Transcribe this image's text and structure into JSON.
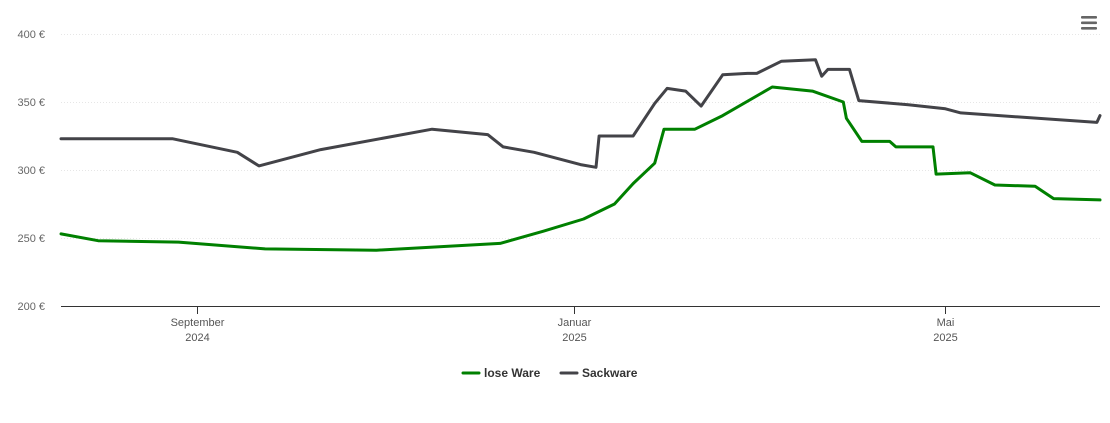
{
  "chart_data": {
    "type": "line",
    "title": "",
    "xlabel": "",
    "ylabel": "",
    "x_range": [
      "2024-07-19",
      "2025-06-20"
    ],
    "ylim": [
      200,
      400
    ],
    "y_ticks": [
      {
        "value": 200,
        "label": "200 €"
      },
      {
        "value": 250,
        "label": "250 €"
      },
      {
        "value": 300,
        "label": "300 €"
      },
      {
        "value": 350,
        "label": "350 €"
      },
      {
        "value": 400,
        "label": "400 €"
      }
    ],
    "x_ticks": [
      {
        "date": "2024-09-01",
        "label": "September",
        "sublabel": "2024"
      },
      {
        "date": "2025-01-01",
        "label": "Januar",
        "sublabel": "2025"
      },
      {
        "date": "2025-05-01",
        "label": "Mai",
        "sublabel": "2025"
      }
    ],
    "grid": true,
    "legend_position": "bottom-center",
    "series": [
      {
        "name": "lose Ware",
        "color": "#008000",
        "points": [
          [
            "2024-07-19",
            253
          ],
          [
            "2024-07-31",
            248
          ],
          [
            "2024-08-26",
            247
          ],
          [
            "2024-09-23",
            242
          ],
          [
            "2024-10-29",
            241
          ],
          [
            "2024-12-08",
            246
          ],
          [
            "2024-12-22",
            255
          ],
          [
            "2025-01-04",
            264
          ],
          [
            "2025-01-14",
            275
          ],
          [
            "2025-01-20",
            290
          ],
          [
            "2025-01-27",
            305
          ],
          [
            "2025-01-30",
            330
          ],
          [
            "2025-02-09",
            330
          ],
          [
            "2025-02-18",
            340
          ],
          [
            "2025-03-06",
            361
          ],
          [
            "2025-03-19",
            358
          ],
          [
            "2025-03-29",
            350
          ],
          [
            "2025-03-30",
            338
          ],
          [
            "2025-04-04",
            321
          ],
          [
            "2025-04-13",
            321
          ],
          [
            "2025-04-15",
            317
          ],
          [
            "2025-04-27",
            317
          ],
          [
            "2025-04-28",
            297
          ],
          [
            "2025-05-09",
            298
          ],
          [
            "2025-05-17",
            289
          ],
          [
            "2025-05-30",
            288
          ],
          [
            "2025-06-05",
            279
          ],
          [
            "2025-06-20",
            278
          ]
        ]
      },
      {
        "name": "Sackware",
        "color": "#434348",
        "points": [
          [
            "2024-07-19",
            323
          ],
          [
            "2024-08-24",
            323
          ],
          [
            "2024-09-14",
            313
          ],
          [
            "2024-09-21",
            303
          ],
          [
            "2024-10-11",
            315
          ],
          [
            "2024-11-16",
            330
          ],
          [
            "2024-12-04",
            326
          ],
          [
            "2024-12-09",
            317
          ],
          [
            "2024-12-19",
            313
          ],
          [
            "2025-01-03",
            304
          ],
          [
            "2025-01-08",
            302
          ],
          [
            "2025-01-09",
            325
          ],
          [
            "2025-01-20",
            325
          ],
          [
            "2025-01-27",
            349
          ],
          [
            "2025-01-31",
            360
          ],
          [
            "2025-02-06",
            358
          ],
          [
            "2025-02-11",
            347
          ],
          [
            "2025-02-18",
            370
          ],
          [
            "2025-02-26",
            371
          ],
          [
            "2025-03-01",
            371
          ],
          [
            "2025-03-09",
            380
          ],
          [
            "2025-03-20",
            381
          ],
          [
            "2025-03-22",
            369
          ],
          [
            "2025-03-24",
            374
          ],
          [
            "2025-03-31",
            374
          ],
          [
            "2025-04-03",
            351
          ],
          [
            "2025-04-19",
            348
          ],
          [
            "2025-05-01",
            345
          ],
          [
            "2025-05-06",
            342
          ],
          [
            "2025-06-19",
            335
          ],
          [
            "2025-06-20",
            340
          ]
        ]
      }
    ]
  }
}
